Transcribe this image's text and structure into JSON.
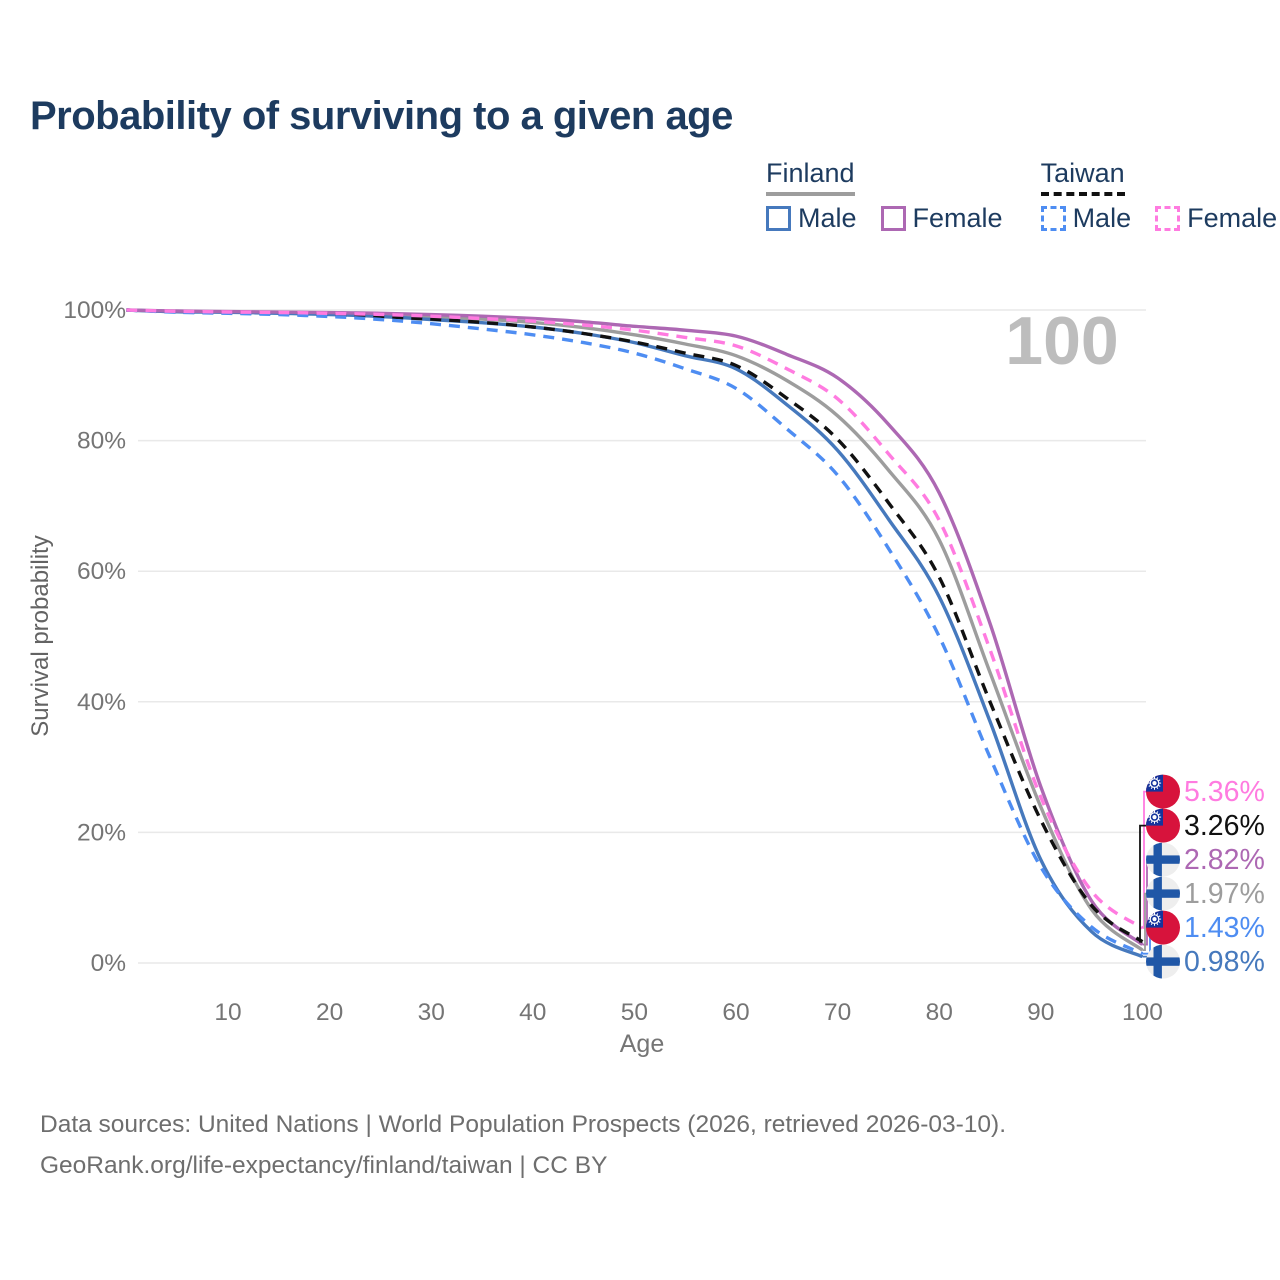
{
  "title": "Probability of surviving to a given age",
  "legend": {
    "groups": [
      {
        "label": "Finland",
        "style": "solid",
        "color": "#9d9d9d",
        "items": [
          {
            "label": "Male",
            "color": "#4679bd"
          },
          {
            "label": "Female",
            "color": "#ad68b3"
          }
        ]
      },
      {
        "label": "Taiwan",
        "style": "dashed",
        "color": "#111111",
        "items": [
          {
            "label": "Male",
            "color": "#4e8df2"
          },
          {
            "label": "Female",
            "color": "#ff7be0"
          }
        ]
      }
    ]
  },
  "axes": {
    "x_axis": {
      "label": "Age",
      "ticks": [
        10,
        20,
        30,
        40,
        50,
        60,
        70,
        80,
        90,
        100
      ],
      "min": 0,
      "max": 100
    },
    "y_axis": {
      "label": "Survival probability",
      "ticks": [
        "0%",
        "20%",
        "40%",
        "60%",
        "80%",
        "100%"
      ],
      "tick_values": [
        0,
        20,
        40,
        60,
        80,
        100
      ],
      "min": 0,
      "max": 100
    }
  },
  "chart_data": {
    "type": "line",
    "title": "Probability of surviving to a given age",
    "xlabel": "Age",
    "ylabel": "Survival probability",
    "xlim": [
      0,
      100
    ],
    "ylim": [
      0,
      100
    ],
    "grid": "horizontal",
    "marker_age_label": "100",
    "x": [
      0,
      5,
      10,
      15,
      20,
      25,
      30,
      35,
      40,
      45,
      50,
      55,
      60,
      65,
      70,
      75,
      80,
      85,
      90,
      95,
      100
    ],
    "series": [
      {
        "id": "finland_total",
        "name": "Finland Total",
        "color": "#9d9d9d",
        "dash": "solid",
        "values": [
          100,
          99.78,
          99.7,
          99.6,
          99.45,
          99.25,
          99.0,
          98.6,
          98.1,
          97.3,
          96.2,
          94.8,
          93.0,
          89.2,
          83.8,
          75.5,
          64.8,
          44.5,
          23.9,
          8.2,
          1.97
        ]
      },
      {
        "id": "finland_male",
        "name": "Finland Male",
        "color": "#4679bd",
        "dash": "solid",
        "values": [
          100,
          99.72,
          99.65,
          99.5,
          99.3,
          99.0,
          98.55,
          98.05,
          97.4,
          96.4,
          95.0,
          93.0,
          91.0,
          85.5,
          78.5,
          68.0,
          56.1,
          37.0,
          15.8,
          4.8,
          0.98
        ]
      },
      {
        "id": "finland_female",
        "name": "Finland Female",
        "color": "#ad68b3",
        "dash": "solid",
        "values": [
          100,
          99.85,
          99.75,
          99.68,
          99.6,
          99.5,
          99.3,
          99.05,
          98.7,
          98.2,
          97.5,
          96.9,
          96.0,
          93.2,
          89.6,
          82.5,
          72.0,
          52.0,
          27.0,
          9.5,
          2.82
        ]
      },
      {
        "id": "taiwan_total",
        "name": "Taiwan Total",
        "color": "#111111",
        "dash": "dashed",
        "values": [
          100,
          99.72,
          99.6,
          99.5,
          99.3,
          99.0,
          98.6,
          98.1,
          97.4,
          96.4,
          95.1,
          93.4,
          91.5,
          86.5,
          80.2,
          70.5,
          59.1,
          40.0,
          21.9,
          8.8,
          3.26
        ]
      },
      {
        "id": "taiwan_male",
        "name": "Taiwan Male",
        "color": "#4e8df2",
        "dash": "dashed",
        "values": [
          100,
          99.65,
          99.5,
          99.3,
          99.0,
          98.55,
          97.9,
          97.1,
          96.2,
          95.0,
          93.4,
          91.0,
          88.0,
          81.8,
          74.7,
          63.5,
          50.0,
          31.5,
          14.7,
          5.5,
          1.43
        ]
      },
      {
        "id": "taiwan_female",
        "name": "Taiwan Female",
        "color": "#ff7be0",
        "dash": "dashed",
        "values": [
          100,
          99.8,
          99.7,
          99.62,
          99.5,
          99.32,
          99.05,
          98.7,
          98.3,
          97.7,
          96.9,
          95.8,
          94.5,
          91.0,
          86.4,
          78.0,
          67.8,
          48.0,
          25.4,
          11.0,
          5.36
        ]
      }
    ],
    "end_labels": [
      {
        "series": "taiwan_female",
        "text": "5.36%",
        "flag": "taiwan",
        "color": "#ff7be0"
      },
      {
        "series": "taiwan_total",
        "text": "3.26%",
        "flag": "taiwan",
        "color": "#111111"
      },
      {
        "series": "finland_female",
        "text": "2.82%",
        "flag": "finland",
        "color": "#ad68b3"
      },
      {
        "series": "finland_total",
        "text": "1.97%",
        "flag": "finland",
        "color": "#9d9d9d"
      },
      {
        "series": "taiwan_male",
        "text": "1.43%",
        "flag": "taiwan",
        "color": "#4e8df2"
      },
      {
        "series": "finland_male",
        "text": "0.98%",
        "flag": "finland",
        "color": "#4679bd"
      }
    ],
    "flag_colors": {
      "taiwan_red": "#d7133c",
      "taiwan_blue": "#16349c",
      "finland_bg": "#eeeeee",
      "finland_blue": "#2057a7"
    }
  },
  "footer": {
    "line1": "Data sources: United Nations | World Population Prospects (2026, retrieved 2026-03-10).",
    "line2": "GeoRank.org/life-expectancy/finland/taiwan | CC BY"
  }
}
